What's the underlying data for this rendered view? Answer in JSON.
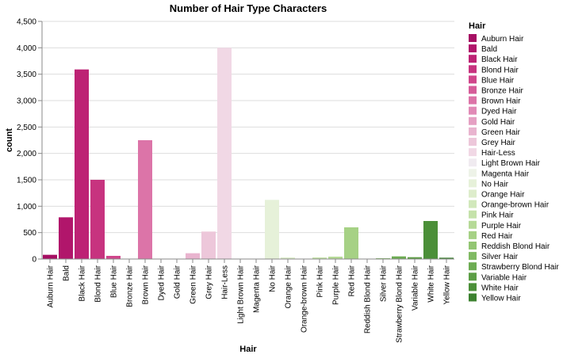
{
  "chart_data": {
    "type": "bar",
    "title": "Number of Hair Type Characters",
    "xlabel": "Hair",
    "ylabel": "count",
    "ylim": [
      0,
      4500
    ],
    "yticks": [
      0,
      500,
      1000,
      1500,
      2000,
      2500,
      3000,
      3500,
      4000,
      4500
    ],
    "ytick_labels": [
      "0",
      "500",
      "1,000",
      "1,500",
      "2,000",
      "2,500",
      "3,000",
      "3,500",
      "4,000",
      "4,500"
    ],
    "grid": true,
    "legend_title": "Hair",
    "legend_position": "right",
    "categories": [
      "Auburn Hair",
      "Bald",
      "Black Hair",
      "Blond Hair",
      "Blue Hair",
      "Bronze Hair",
      "Brown Hair",
      "Dyed Hair",
      "Gold Hair",
      "Green Hair",
      "Grey Hair",
      "Hair-Less",
      "Light Brown Hair",
      "Magenta Hair",
      "No Hair",
      "Orange Hair",
      "Orange-brown Hair",
      "Pink Hair",
      "Purple Hair",
      "Red Hair",
      "Reddish Blond Hair",
      "Silver Hair",
      "Strawberry Blond Hair",
      "Variable Hair",
      "White Hair",
      "Yellow Hair"
    ],
    "values": [
      80,
      790,
      3590,
      1500,
      60,
      5,
      2250,
      3,
      3,
      110,
      520,
      4000,
      3,
      3,
      1120,
      30,
      5,
      30,
      45,
      600,
      5,
      15,
      50,
      35,
      720,
      25
    ],
    "colors": [
      "#a60e63",
      "#b1166b",
      "#bd2274",
      "#c7337f",
      "#d0468b",
      "#d65c99",
      "#dc74a8",
      "#e18ab6",
      "#e5a0c3",
      "#e9b4cf",
      "#edc7da",
      "#f1d8e5",
      "#f0ebf0",
      "#eef3e8",
      "#e6f1d9",
      "#ddedcb",
      "#d1e8bb",
      "#c5e2aa",
      "#b6da97",
      "#a6d185",
      "#93c673",
      "#80ba63",
      "#6dac53",
      "#5c9e45",
      "#4b8f38",
      "#3c812f"
    ]
  }
}
